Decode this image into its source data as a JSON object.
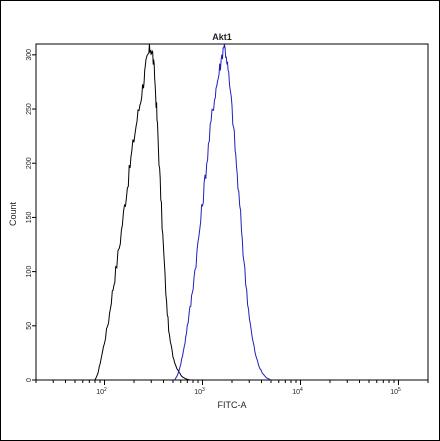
{
  "chart_data": {
    "type": "area",
    "title": "Akt1",
    "xlabel": "FITC-A",
    "ylabel": "Count",
    "xscale": "log",
    "xlim": [
      20,
      200000
    ],
    "ylim": [
      0,
      310
    ],
    "grid": false,
    "legend": "none",
    "yticks": [
      {
        "value": 0,
        "label": "0"
      },
      {
        "value": 50,
        "label": "50"
      },
      {
        "value": 100,
        "label": "100"
      },
      {
        "value": 150,
        "label": "150"
      },
      {
        "value": 200,
        "label": "200"
      },
      {
        "value": 250,
        "label": "250"
      },
      {
        "value": 300,
        "label": "300"
      }
    ],
    "xticks": [
      {
        "value": 100,
        "base": "10",
        "exp": "2"
      },
      {
        "value": 1000,
        "base": "10",
        "exp": "3"
      },
      {
        "value": 10000,
        "base": "10",
        "exp": "4"
      },
      {
        "value": 100000,
        "base": "10",
        "exp": "5"
      }
    ],
    "series": [
      {
        "color": "#000000",
        "x": [
          80,
          85,
          90,
          100,
          110,
          120,
          130,
          145,
          160,
          175,
          190,
          210,
          230,
          250,
          265,
          280,
          295,
          310,
          325,
          340,
          355,
          375,
          400,
          430,
          460,
          500,
          540,
          580,
          620,
          680,
          750
        ],
        "y": [
          0,
          5,
          15,
          35,
          55,
          80,
          100,
          130,
          160,
          185,
          210,
          235,
          255,
          275,
          290,
          300,
          307,
          300,
          280,
          250,
          215,
          170,
          120,
          70,
          40,
          22,
          12,
          7,
          3,
          1,
          0
        ]
      },
      {
        "color": "#1f1fbf",
        "x": [
          520,
          560,
          600,
          650,
          700,
          760,
          820,
          900,
          980,
          1060,
          1150,
          1250,
          1350,
          1450,
          1550,
          1650,
          1750,
          1850,
          2000,
          2150,
          2300,
          2500,
          2700,
          2950,
          3200,
          3500,
          3800,
          4100,
          4500,
          5000
        ],
        "y": [
          0,
          5,
          15,
          30,
          50,
          70,
          95,
          125,
          155,
          185,
          215,
          245,
          265,
          280,
          295,
          310,
          300,
          280,
          250,
          215,
          180,
          140,
          100,
          65,
          40,
          22,
          12,
          6,
          2,
          0
        ]
      }
    ]
  }
}
